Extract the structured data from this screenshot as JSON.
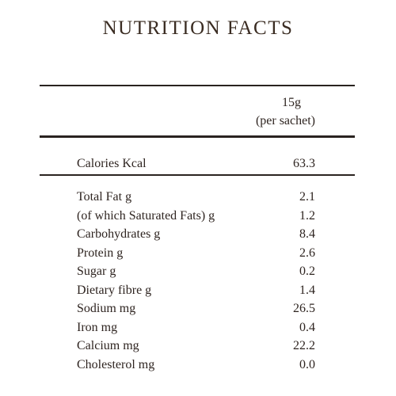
{
  "header": {
    "title": "NUTRITION FACTS"
  },
  "table": {
    "serving": [
      "15g",
      "(per sachet)"
    ],
    "calories": [
      "Calories Kcal",
      "63.3"
    ],
    "rows": [
      [
        "Total Fat g",
        "2.1"
      ],
      [
        "(of which Saturated Fats) g",
        "1.2"
      ],
      [
        "Carbohydrates g",
        "8.4"
      ],
      [
        "Protein g",
        "2.6"
      ],
      [
        "Sugar g",
        "0.2"
      ],
      [
        "Dietary fibre g",
        "1.4"
      ],
      [
        "Sodium mg",
        "26.5"
      ],
      [
        "Iron mg",
        "0.4"
      ],
      [
        "Calcium mg",
        "22.2"
      ],
      [
        "Cholesterol mg",
        "0.0"
      ]
    ]
  }
}
